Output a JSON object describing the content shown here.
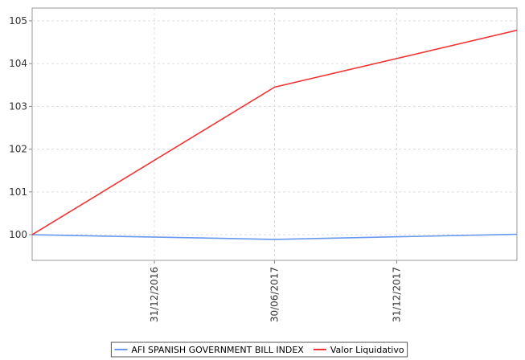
{
  "chart_data": {
    "type": "line",
    "title": "",
    "xlabel": "",
    "ylabel": "",
    "x": [
      "2016-06-30",
      "2016-12-31",
      "2017-06-30",
      "2017-12-31",
      "2018-06-30"
    ],
    "x_tick_labels": [
      "31/12/2016",
      "30/06/2017",
      "31/12/2017"
    ],
    "y_ticks": [
      100,
      101,
      102,
      103,
      104,
      105
    ],
    "y_tick_labels": [
      "100",
      "101",
      "102",
      "103",
      "104",
      "105"
    ],
    "ylim": [
      99.4,
      105.3
    ],
    "grid": true,
    "legend_position": "bottom",
    "series": [
      {
        "name": "AFI SPANISH GOVERNMENT BILL INDEX",
        "color": "#6699ee",
        "points": [
          [
            "2016-06-30",
            100.0
          ],
          [
            "2017-06-30",
            99.89
          ],
          [
            "2018-06-30",
            100.01
          ]
        ]
      },
      {
        "name": "Valor Liquidativo",
        "color": "#ee3333",
        "points": [
          [
            "2016-06-30",
            100.0
          ],
          [
            "2017-06-30",
            103.45
          ],
          [
            "2018-06-30",
            104.78
          ]
        ]
      }
    ]
  }
}
